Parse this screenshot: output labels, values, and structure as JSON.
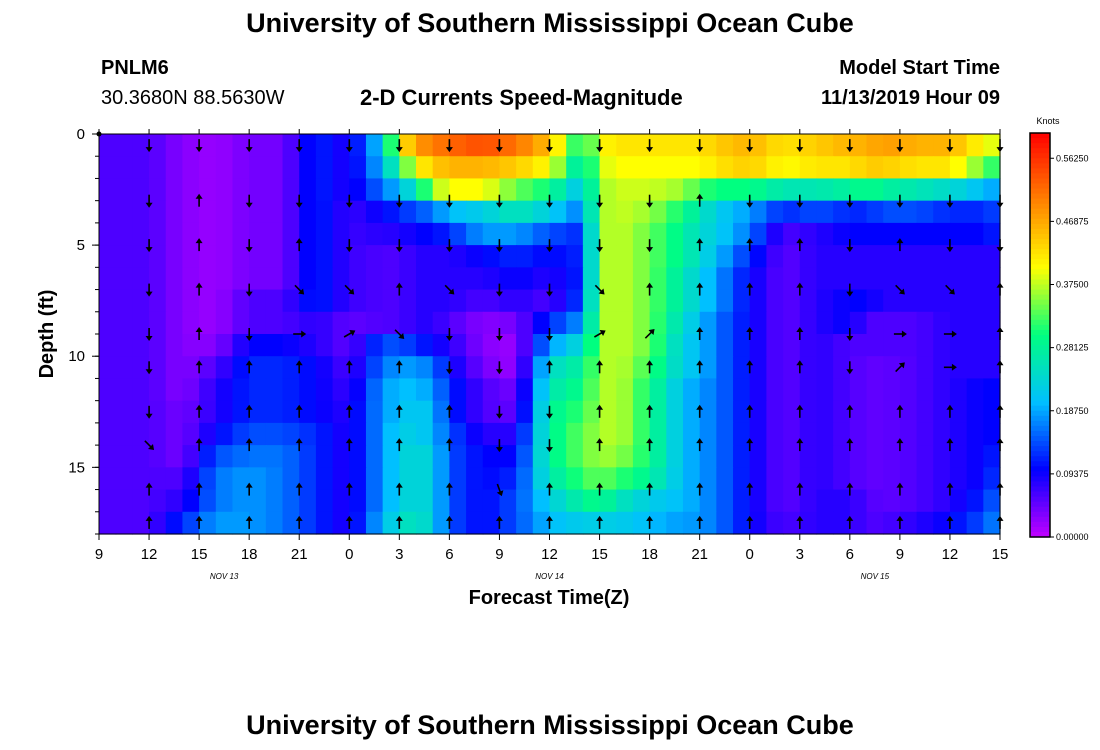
{
  "page": {
    "title": "University of Southern Mississippi Ocean Cube",
    "title_bottom": "University of Southern Mississippi Ocean Cube",
    "station_id": "PNLM6",
    "station_coords": "30.3680N 88.5630W",
    "chart_title": "2-D Currents Speed-Magnitude",
    "model_start_label": "Model Start Time",
    "model_start_value": "11/13/2019 Hour 09"
  },
  "chart_data": {
    "type": "heatmap",
    "title": "2-D Currents Speed-Magnitude",
    "xlabel": "Forecast Time(Z)",
    "ylabel": "Depth (ft)",
    "x_ticks": [
      "9",
      "12",
      "15",
      "18",
      "21",
      "0",
      "3",
      "6",
      "9",
      "12",
      "15",
      "18",
      "21",
      "0",
      "3",
      "6",
      "9",
      "12",
      "15"
    ],
    "date_labels": [
      {
        "text": "NOV 13",
        "at_tick": 2.5
      },
      {
        "text": "NOV 14",
        "at_tick": 9
      },
      {
        "text": "NOV 15",
        "at_tick": 15.5
      }
    ],
    "y_ticks": [
      "0",
      "5",
      "10",
      "15"
    ],
    "ylim": [
      0,
      18
    ],
    "y_inverted": true,
    "xlim_hours": [
      0,
      54
    ],
    "colorbar": {
      "title": "Knots",
      "labels": [
        "0.56250",
        "0.46875",
        "0.37500",
        "0.28125",
        "0.18750",
        "0.09375",
        "0.00000"
      ],
      "range": [
        0,
        0.6
      ],
      "colormap": [
        "#c000ff",
        "#0000ff",
        "#00c0ff",
        "#00ff80",
        "#ffff00",
        "#ff8000",
        "#ff0000"
      ]
    },
    "depths_ft": [
      0.5,
      1.5,
      2.5,
      3.5,
      4.5,
      5.5,
      6.5,
      7.5,
      8.5,
      9.5,
      10.5,
      11.5,
      12.5,
      13.5,
      14.5,
      15.5,
      16.5,
      17.5
    ],
    "speed_profile": {
      "hours": [
        0,
        3,
        5,
        7,
        9,
        11,
        13,
        15,
        17,
        18,
        19,
        20,
        21,
        23,
        25,
        27,
        29,
        30,
        31,
        33,
        35,
        36,
        37,
        39,
        41,
        43,
        45,
        46,
        47,
        49,
        51,
        53,
        54
      ],
      "rows": [
        [
          0.06,
          0.06,
          0.03,
          0.02,
          0.04,
          0.04,
          0.12,
          0.08,
          0.22,
          0.4,
          0.48,
          0.5,
          0.52,
          0.54,
          0.51,
          0.45,
          0.28,
          0.4,
          0.42,
          0.42,
          0.42,
          0.42,
          0.44,
          0.46,
          0.42,
          0.44,
          0.46,
          0.46,
          0.48,
          0.46,
          0.46,
          0.4,
          0.38
        ],
        [
          0.06,
          0.06,
          0.03,
          0.02,
          0.04,
          0.04,
          0.12,
          0.08,
          0.2,
          0.3,
          0.4,
          0.44,
          0.46,
          0.46,
          0.44,
          0.4,
          0.24,
          0.38,
          0.4,
          0.4,
          0.4,
          0.4,
          0.42,
          0.44,
          0.4,
          0.42,
          0.42,
          0.44,
          0.44,
          0.42,
          0.42,
          0.34,
          0.3
        ],
        [
          0.06,
          0.06,
          0.03,
          0.02,
          0.04,
          0.04,
          0.12,
          0.08,
          0.16,
          0.2,
          0.26,
          0.36,
          0.4,
          0.4,
          0.34,
          0.3,
          0.2,
          0.36,
          0.38,
          0.38,
          0.36,
          0.32,
          0.3,
          0.3,
          0.26,
          0.26,
          0.28,
          0.3,
          0.28,
          0.26,
          0.24,
          0.2,
          0.18
        ],
        [
          0.06,
          0.06,
          0.03,
          0.02,
          0.04,
          0.04,
          0.12,
          0.07,
          0.1,
          0.12,
          0.14,
          0.16,
          0.2,
          0.22,
          0.26,
          0.22,
          0.16,
          0.36,
          0.38,
          0.36,
          0.3,
          0.26,
          0.22,
          0.18,
          0.12,
          0.14,
          0.12,
          0.12,
          0.14,
          0.14,
          0.12,
          0.12,
          0.14
        ],
        [
          0.06,
          0.06,
          0.03,
          0.02,
          0.04,
          0.04,
          0.12,
          0.07,
          0.08,
          0.08,
          0.1,
          0.1,
          0.12,
          0.18,
          0.18,
          0.14,
          0.12,
          0.36,
          0.38,
          0.34,
          0.28,
          0.24,
          0.22,
          0.16,
          0.06,
          0.08,
          0.1,
          0.1,
          0.1,
          0.1,
          0.1,
          0.1,
          0.12
        ],
        [
          0.06,
          0.06,
          0.03,
          0.02,
          0.04,
          0.04,
          0.12,
          0.07,
          0.06,
          0.06,
          0.08,
          0.08,
          0.08,
          0.1,
          0.12,
          0.1,
          0.12,
          0.36,
          0.38,
          0.34,
          0.28,
          0.24,
          0.2,
          0.12,
          0.05,
          0.08,
          0.08,
          0.08,
          0.08,
          0.08,
          0.08,
          0.08,
          0.08
        ],
        [
          0.06,
          0.06,
          0.03,
          0.02,
          0.04,
          0.04,
          0.12,
          0.07,
          0.06,
          0.06,
          0.08,
          0.08,
          0.08,
          0.08,
          0.1,
          0.08,
          0.12,
          0.36,
          0.38,
          0.34,
          0.26,
          0.22,
          0.18,
          0.1,
          0.05,
          0.08,
          0.08,
          0.08,
          0.08,
          0.08,
          0.08,
          0.08,
          0.08
        ],
        [
          0.06,
          0.06,
          0.03,
          0.02,
          0.06,
          0.06,
          0.12,
          0.07,
          0.06,
          0.06,
          0.08,
          0.08,
          0.08,
          0.06,
          0.08,
          0.06,
          0.14,
          0.36,
          0.38,
          0.34,
          0.26,
          0.22,
          0.18,
          0.1,
          0.05,
          0.08,
          0.1,
          0.1,
          0.08,
          0.08,
          0.08,
          0.08,
          0.08
        ],
        [
          0.06,
          0.06,
          0.03,
          0.02,
          0.06,
          0.06,
          0.08,
          0.05,
          0.06,
          0.06,
          0.08,
          0.08,
          0.06,
          0.03,
          0.04,
          0.12,
          0.18,
          0.36,
          0.38,
          0.34,
          0.24,
          0.2,
          0.16,
          0.1,
          0.05,
          0.08,
          0.1,
          0.06,
          0.06,
          0.06,
          0.08,
          0.08,
          0.08
        ],
        [
          0.06,
          0.06,
          0.03,
          0.03,
          0.1,
          0.1,
          0.08,
          0.05,
          0.14,
          0.14,
          0.12,
          0.1,
          0.08,
          0.03,
          0.02,
          0.18,
          0.24,
          0.36,
          0.38,
          0.34,
          0.22,
          0.2,
          0.16,
          0.1,
          0.05,
          0.08,
          0.06,
          0.06,
          0.06,
          0.06,
          0.08,
          0.08,
          0.08
        ],
        [
          0.06,
          0.06,
          0.03,
          0.06,
          0.12,
          0.12,
          0.1,
          0.06,
          0.16,
          0.18,
          0.18,
          0.16,
          0.1,
          0.04,
          0.02,
          0.24,
          0.28,
          0.36,
          0.38,
          0.32,
          0.22,
          0.2,
          0.16,
          0.1,
          0.05,
          0.08,
          0.06,
          0.05,
          0.05,
          0.06,
          0.08,
          0.08,
          0.08
        ],
        [
          0.06,
          0.06,
          0.03,
          0.08,
          0.12,
          0.12,
          0.1,
          0.07,
          0.18,
          0.2,
          0.2,
          0.18,
          0.12,
          0.06,
          0.04,
          0.26,
          0.3,
          0.36,
          0.38,
          0.3,
          0.2,
          0.18,
          0.16,
          0.1,
          0.05,
          0.08,
          0.06,
          0.05,
          0.05,
          0.06,
          0.08,
          0.1,
          0.1
        ],
        [
          0.06,
          0.06,
          0.04,
          0.08,
          0.12,
          0.12,
          0.1,
          0.08,
          0.18,
          0.2,
          0.22,
          0.2,
          0.12,
          0.06,
          0.05,
          0.28,
          0.32,
          0.36,
          0.38,
          0.3,
          0.2,
          0.18,
          0.16,
          0.1,
          0.05,
          0.08,
          0.06,
          0.05,
          0.05,
          0.06,
          0.08,
          0.1,
          0.1
        ],
        [
          0.06,
          0.06,
          0.04,
          0.1,
          0.14,
          0.14,
          0.12,
          0.08,
          0.18,
          0.22,
          0.22,
          0.2,
          0.14,
          0.08,
          0.08,
          0.28,
          0.34,
          0.36,
          0.38,
          0.3,
          0.2,
          0.18,
          0.16,
          0.1,
          0.05,
          0.08,
          0.06,
          0.05,
          0.05,
          0.06,
          0.08,
          0.1,
          0.1
        ],
        [
          0.06,
          0.06,
          0.04,
          0.14,
          0.16,
          0.16,
          0.12,
          0.08,
          0.18,
          0.22,
          0.24,
          0.22,
          0.14,
          0.1,
          0.1,
          0.28,
          0.34,
          0.36,
          0.36,
          0.3,
          0.2,
          0.18,
          0.16,
          0.1,
          0.05,
          0.08,
          0.06,
          0.05,
          0.05,
          0.06,
          0.08,
          0.1,
          0.12
        ],
        [
          0.06,
          0.06,
          0.06,
          0.16,
          0.18,
          0.16,
          0.12,
          0.08,
          0.18,
          0.22,
          0.24,
          0.22,
          0.14,
          0.1,
          0.12,
          0.26,
          0.32,
          0.34,
          0.32,
          0.28,
          0.2,
          0.18,
          0.16,
          0.1,
          0.05,
          0.08,
          0.06,
          0.05,
          0.05,
          0.06,
          0.08,
          0.1,
          0.14
        ],
        [
          0.06,
          0.06,
          0.08,
          0.16,
          0.18,
          0.16,
          0.12,
          0.08,
          0.18,
          0.22,
          0.24,
          0.22,
          0.14,
          0.1,
          0.14,
          0.22,
          0.28,
          0.3,
          0.26,
          0.22,
          0.2,
          0.18,
          0.16,
          0.1,
          0.05,
          0.08,
          0.08,
          0.06,
          0.05,
          0.06,
          0.08,
          0.12,
          0.16
        ],
        [
          0.06,
          0.06,
          0.12,
          0.18,
          0.18,
          0.16,
          0.12,
          0.08,
          0.2,
          0.24,
          0.26,
          0.22,
          0.14,
          0.1,
          0.14,
          0.2,
          0.22,
          0.22,
          0.22,
          0.2,
          0.18,
          0.18,
          0.16,
          0.1,
          0.06,
          0.08,
          0.08,
          0.06,
          0.06,
          0.08,
          0.1,
          0.14,
          0.18
        ]
      ]
    },
    "arrows": {
      "hours": [
        3,
        6,
        9,
        12,
        15,
        18,
        21,
        24,
        27,
        30,
        33,
        36,
        39,
        42,
        45,
        48,
        51,
        54
      ],
      "arrow_depths": [
        0.5,
        3,
        5,
        7,
        9,
        10.5,
        12.5,
        14,
        16,
        17.5
      ],
      "direction_deg_rows": [
        [
          180,
          180,
          180,
          180,
          180,
          180,
          180,
          180,
          180,
          180,
          180,
          180,
          180,
          180,
          180,
          180,
          180,
          180
        ],
        [
          180,
          0,
          180,
          180,
          180,
          180,
          180,
          180,
          180,
          180,
          180,
          0,
          180,
          180,
          180,
          180,
          180,
          180
        ],
        [
          180,
          0,
          180,
          0,
          180,
          180,
          180,
          180,
          180,
          180,
          180,
          0,
          0,
          0,
          180,
          0,
          180,
          180
        ],
        [
          180,
          0,
          180,
          135,
          135,
          0,
          135,
          180,
          180,
          135,
          0,
          0,
          0,
          0,
          180,
          135,
          135,
          0
        ],
        [
          180,
          0,
          180,
          90,
          60,
          135,
          180,
          180,
          180,
          60,
          45,
          0,
          0,
          0,
          180,
          90,
          90,
          0
        ],
        [
          180,
          0,
          0,
          0,
          0,
          0,
          180,
          180,
          0,
          0,
          0,
          0,
          0,
          0,
          180,
          45,
          90,
          0
        ],
        [
          180,
          0,
          0,
          0,
          0,
          0,
          0,
          180,
          180,
          0,
          0,
          0,
          0,
          0,
          0,
          0,
          0,
          0
        ],
        [
          135,
          0,
          0,
          0,
          0,
          0,
          0,
          180,
          180,
          0,
          0,
          0,
          0,
          0,
          0,
          0,
          0,
          0
        ],
        [
          0,
          0,
          0,
          0,
          0,
          0,
          0,
          160,
          0,
          0,
          0,
          0,
          0,
          0,
          0,
          0,
          0,
          0
        ],
        [
          0,
          0,
          0,
          0,
          0,
          0,
          0,
          0,
          0,
          0,
          0,
          0,
          0,
          0,
          0,
          0,
          0,
          0
        ]
      ]
    }
  }
}
